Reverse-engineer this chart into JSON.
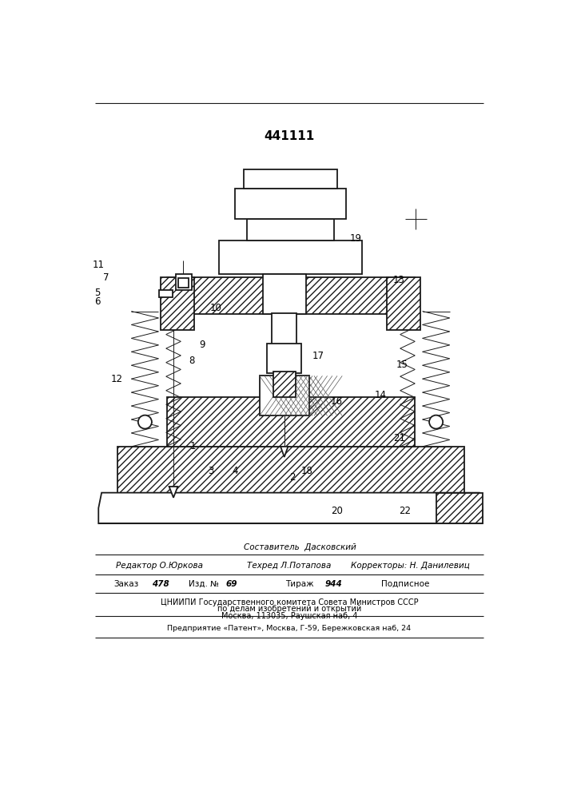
{
  "patent_number": "441111",
  "bg_color": "#ffffff",
  "line_color": "#1a1a1a",
  "footer_composer": "Составитель  Дасковский",
  "footer_editor": "Редактор О.Юркова",
  "footer_tech": "Техред Л.Потапова",
  "footer_correctors": "Корректоры: Н. Данилевиц",
  "footer_order": "Заказ",
  "footer_order_num": "478",
  "footer_izd": "Изд. №",
  "footer_izd_num": "69",
  "footer_tirazh": "Тираж",
  "footer_tirazh_num": "944",
  "footer_podpisnoe": "Подписное",
  "footer_org": "ЦНИИПИ Государственного комитета Совета Министров СССР",
  "footer_org2": "по делам изобретений и открытий",
  "footer_addr": "Москва, 113035, Раушская наб, 4",
  "footer_enterprise": "Предприятие «Патент», Москва, Г-59, Бережковская наб, 24"
}
